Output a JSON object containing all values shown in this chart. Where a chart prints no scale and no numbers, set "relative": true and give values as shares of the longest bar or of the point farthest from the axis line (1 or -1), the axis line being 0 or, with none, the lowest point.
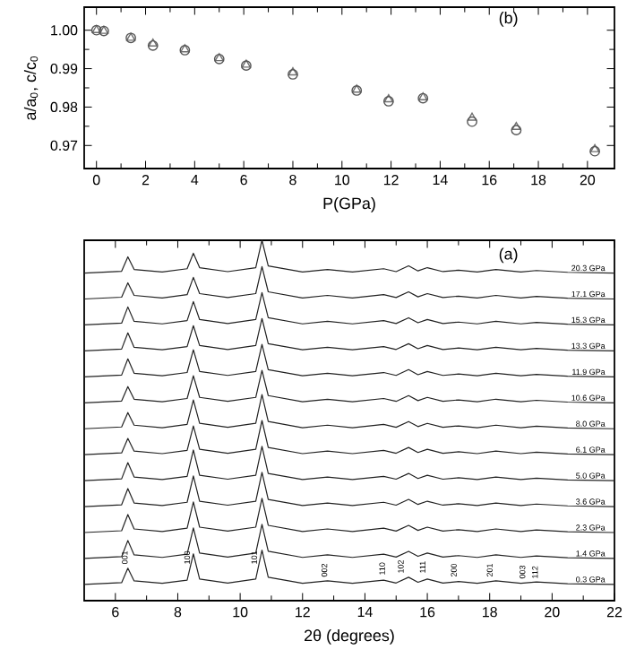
{
  "chart_data": [
    {
      "type": "scatter",
      "xlabel": "P(GPa)",
      "ylabel": "a/a$_{0}$, c/c$_{0}$",
      "annotations": [
        "(b)"
      ],
      "x": [
        0,
        0.3,
        1.4,
        2.3,
        3.6,
        5.0,
        6.1,
        8.0,
        10.6,
        11.9,
        13.3,
        15.3,
        17.1,
        20.3
      ],
      "series": [
        {
          "color": "#555555",
          "marker": "circle",
          "values": [
            1.0,
            0.9998,
            0.998,
            0.996,
            0.9948,
            0.9925,
            0.9908,
            0.9885,
            0.9843,
            0.9815,
            0.9823,
            0.9762,
            0.974,
            0.9685
          ]
        },
        {
          "color": "#707070",
          "marker": "triangle",
          "values": [
            1.0,
            0.9998,
            0.998,
            0.9965,
            0.995,
            0.9927,
            0.991,
            0.989,
            0.9845,
            0.982,
            0.9825,
            0.9772,
            0.9748,
            0.969
          ]
        }
      ],
      "xlim": [
        -0.5,
        21.1
      ],
      "xticks": [
        0,
        2,
        4,
        6,
        8,
        10,
        12,
        14,
        16,
        18,
        20
      ],
      "ylim": [
        0.964,
        1.006
      ],
      "yticks": [
        0.97,
        0.98,
        0.99,
        {
          "value": 1.0,
          "label": "1.00"
        }
      ]
    },
    {
      "type": "line",
      "relative": true,
      "xlabel": "2θ (degrees)",
      "tick_labels": "x",
      "annotations": [
        "(a)",
        {
          "text": "001",
          "x": 6.3,
          "y": 0.095
        },
        {
          "text": "100",
          "x": 8.3,
          "y": 0.095
        },
        {
          "text": "101",
          "x": 10.45,
          "y": 0.095
        },
        {
          "text": "002",
          "x": 12.7,
          "y": 0.06
        },
        {
          "text": "110",
          "x": 14.55,
          "y": 0.065
        },
        {
          "text": "102",
          "x": 15.15,
          "y": 0.07
        },
        {
          "text": "111",
          "x": 15.85,
          "y": 0.07
        },
        {
          "text": "200",
          "x": 16.85,
          "y": 0.06
        },
        {
          "text": "201",
          "x": 18.0,
          "y": 0.06
        },
        {
          "text": "003",
          "x": 19.05,
          "y": 0.055
        },
        {
          "text": "112",
          "x": 19.45,
          "y": 0.055
        }
      ],
      "x": [
        5,
        6.2,
        6.4,
        6.6,
        7.5,
        8.3,
        8.5,
        8.7,
        9.6,
        10.5,
        10.7,
        10.9,
        12.0,
        12.8,
        13.6,
        14.6,
        15.0,
        15.4,
        15.7,
        16.0,
        16.5,
        17.0,
        17.6,
        18.2,
        19.0,
        19.5,
        20.5,
        22
      ],
      "xlim": [
        5,
        22
      ],
      "xticks": [
        6,
        8,
        10,
        12,
        14,
        16,
        18,
        20,
        22
      ],
      "series": [
        {
          "name": "20.3 GPa",
          "color": "#222222",
          "values": [
            0.909,
            0.914,
            0.954,
            0.919,
            0.912,
            0.921,
            0.964,
            0.924,
            0.913,
            0.924,
            1.0,
            0.929,
            0.912,
            0.919,
            0.912,
            0.921,
            0.913,
            0.929,
            0.915,
            0.924,
            0.913,
            0.917,
            0.912,
            0.919,
            0.912,
            0.916,
            0.911,
            0.909
          ]
        },
        {
          "name": "17.1 GPa",
          "color": "#222222",
          "values": [
            0.837,
            0.842,
            0.882,
            0.847,
            0.84,
            0.849,
            0.897,
            0.852,
            0.841,
            0.852,
            0.927,
            0.857,
            0.84,
            0.847,
            0.84,
            0.849,
            0.841,
            0.857,
            0.843,
            0.852,
            0.841,
            0.845,
            0.84,
            0.847,
            0.84,
            0.844,
            0.839,
            0.837
          ]
        },
        {
          "name": "15.3 GPa",
          "color": "#222222",
          "values": [
            0.765,
            0.77,
            0.815,
            0.775,
            0.768,
            0.777,
            0.83,
            0.78,
            0.769,
            0.78,
            0.855,
            0.785,
            0.768,
            0.775,
            0.768,
            0.777,
            0.769,
            0.785,
            0.771,
            0.78,
            0.769,
            0.773,
            0.768,
            0.775,
            0.768,
            0.772,
            0.767,
            0.765
          ]
        },
        {
          "name": "13.3 GPa",
          "color": "#222222",
          "values": [
            0.693,
            0.698,
            0.743,
            0.703,
            0.696,
            0.705,
            0.763,
            0.708,
            0.697,
            0.708,
            0.783,
            0.713,
            0.696,
            0.703,
            0.696,
            0.705,
            0.697,
            0.713,
            0.699,
            0.708,
            0.697,
            0.701,
            0.696,
            0.703,
            0.696,
            0.7,
            0.695,
            0.693
          ]
        },
        {
          "name": "11.9 GPa",
          "color": "#222222",
          "values": [
            0.621,
            0.626,
            0.671,
            0.631,
            0.624,
            0.633,
            0.696,
            0.636,
            0.625,
            0.636,
            0.711,
            0.641,
            0.624,
            0.631,
            0.624,
            0.633,
            0.625,
            0.641,
            0.627,
            0.636,
            0.625,
            0.629,
            0.624,
            0.631,
            0.624,
            0.628,
            0.623,
            0.621
          ]
        },
        {
          "name": "10.6 GPa",
          "color": "#222222",
          "values": [
            0.549,
            0.554,
            0.594,
            0.559,
            0.552,
            0.561,
            0.624,
            0.564,
            0.553,
            0.564,
            0.639,
            0.569,
            0.552,
            0.559,
            0.552,
            0.561,
            0.553,
            0.569,
            0.555,
            0.564,
            0.553,
            0.557,
            0.552,
            0.559,
            0.552,
            0.556,
            0.551,
            0.549
          ]
        },
        {
          "name": "8.0 GPa",
          "color": "#222222",
          "values": [
            0.477,
            0.482,
            0.522,
            0.487,
            0.48,
            0.489,
            0.557,
            0.492,
            0.481,
            0.492,
            0.572,
            0.497,
            0.48,
            0.487,
            0.48,
            0.489,
            0.481,
            0.497,
            0.483,
            0.492,
            0.481,
            0.485,
            0.48,
            0.487,
            0.48,
            0.484,
            0.479,
            0.477
          ]
        },
        {
          "name": "6.1 GPa",
          "color": "#222222",
          "values": [
            0.405,
            0.41,
            0.45,
            0.415,
            0.408,
            0.417,
            0.485,
            0.42,
            0.409,
            0.42,
            0.5,
            0.425,
            0.408,
            0.415,
            0.408,
            0.417,
            0.409,
            0.425,
            0.411,
            0.42,
            0.409,
            0.413,
            0.408,
            0.415,
            0.408,
            0.412,
            0.407,
            0.405
          ]
        },
        {
          "name": "5.0 GPa",
          "color": "#222222",
          "values": [
            0.333,
            0.338,
            0.383,
            0.343,
            0.336,
            0.345,
            0.418,
            0.348,
            0.337,
            0.348,
            0.428,
            0.353,
            0.336,
            0.343,
            0.336,
            0.345,
            0.337,
            0.353,
            0.339,
            0.348,
            0.337,
            0.341,
            0.336,
            0.343,
            0.336,
            0.34,
            0.335,
            0.333
          ]
        },
        {
          "name": "3.6 GPa",
          "color": "#222222",
          "values": [
            0.261,
            0.266,
            0.311,
            0.271,
            0.264,
            0.273,
            0.346,
            0.276,
            0.265,
            0.276,
            0.356,
            0.281,
            0.264,
            0.271,
            0.264,
            0.273,
            0.265,
            0.281,
            0.267,
            0.276,
            0.265,
            0.269,
            0.264,
            0.271,
            0.264,
            0.268,
            0.263,
            0.261
          ]
        },
        {
          "name": "2.3 GPa",
          "color": "#222222",
          "values": [
            0.189,
            0.194,
            0.239,
            0.199,
            0.192,
            0.201,
            0.274,
            0.204,
            0.193,
            0.204,
            0.284,
            0.209,
            0.192,
            0.199,
            0.192,
            0.201,
            0.193,
            0.209,
            0.195,
            0.204,
            0.193,
            0.197,
            0.192,
            0.199,
            0.192,
            0.196,
            0.191,
            0.189
          ]
        },
        {
          "name": "1.4 GPa",
          "color": "#222222",
          "values": [
            0.117,
            0.122,
            0.167,
            0.127,
            0.12,
            0.129,
            0.202,
            0.132,
            0.121,
            0.132,
            0.212,
            0.137,
            0.12,
            0.127,
            0.12,
            0.129,
            0.121,
            0.137,
            0.123,
            0.132,
            0.121,
            0.125,
            0.12,
            0.127,
            0.12,
            0.124,
            0.119,
            0.117
          ]
        },
        {
          "name": "0.3 GPa",
          "color": "#222222",
          "values": [
            0.045,
            0.05,
            0.09,
            0.055,
            0.048,
            0.057,
            0.13,
            0.06,
            0.049,
            0.06,
            0.14,
            0.065,
            0.048,
            0.055,
            0.048,
            0.057,
            0.049,
            0.065,
            0.051,
            0.06,
            0.049,
            0.053,
            0.048,
            0.055,
            0.048,
            0.052,
            0.047,
            0.045
          ]
        }
      ]
    }
  ]
}
